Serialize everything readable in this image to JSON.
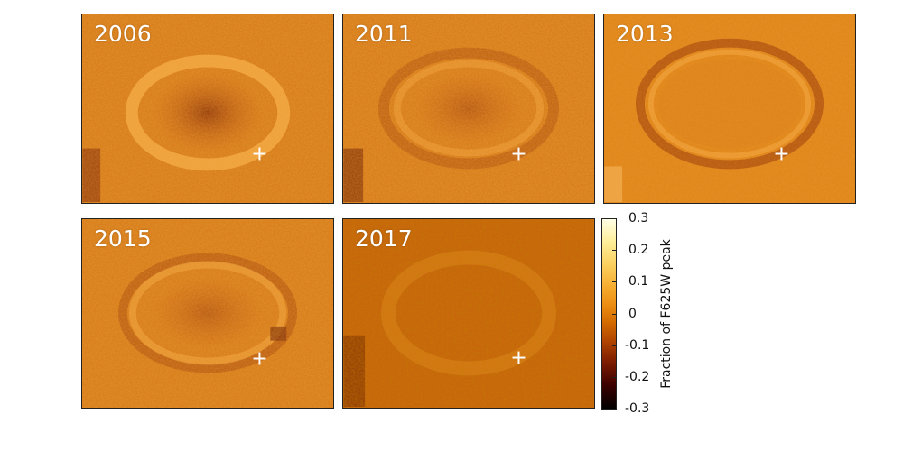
{
  "panels": [
    {
      "label": "2006"
    },
    {
      "label": "2011"
    },
    {
      "label": "2013"
    },
    {
      "label": "2015"
    },
    {
      "label": "2017"
    }
  ],
  "colorbar": {
    "label": "Fraction of F625W peak",
    "ticks": [
      "0.3",
      "0.2",
      "0.1",
      "0",
      "-0.1",
      "-0.2",
      "-0.3"
    ],
    "range": [
      -0.3,
      0.3
    ]
  },
  "colors": {
    "background_orange": "#d97a16",
    "bright_ring": "#f4a43a",
    "dark_core": "#a8460a",
    "marker": "#ffffff"
  },
  "marker": {
    "icon": "plus-marker-icon"
  }
}
